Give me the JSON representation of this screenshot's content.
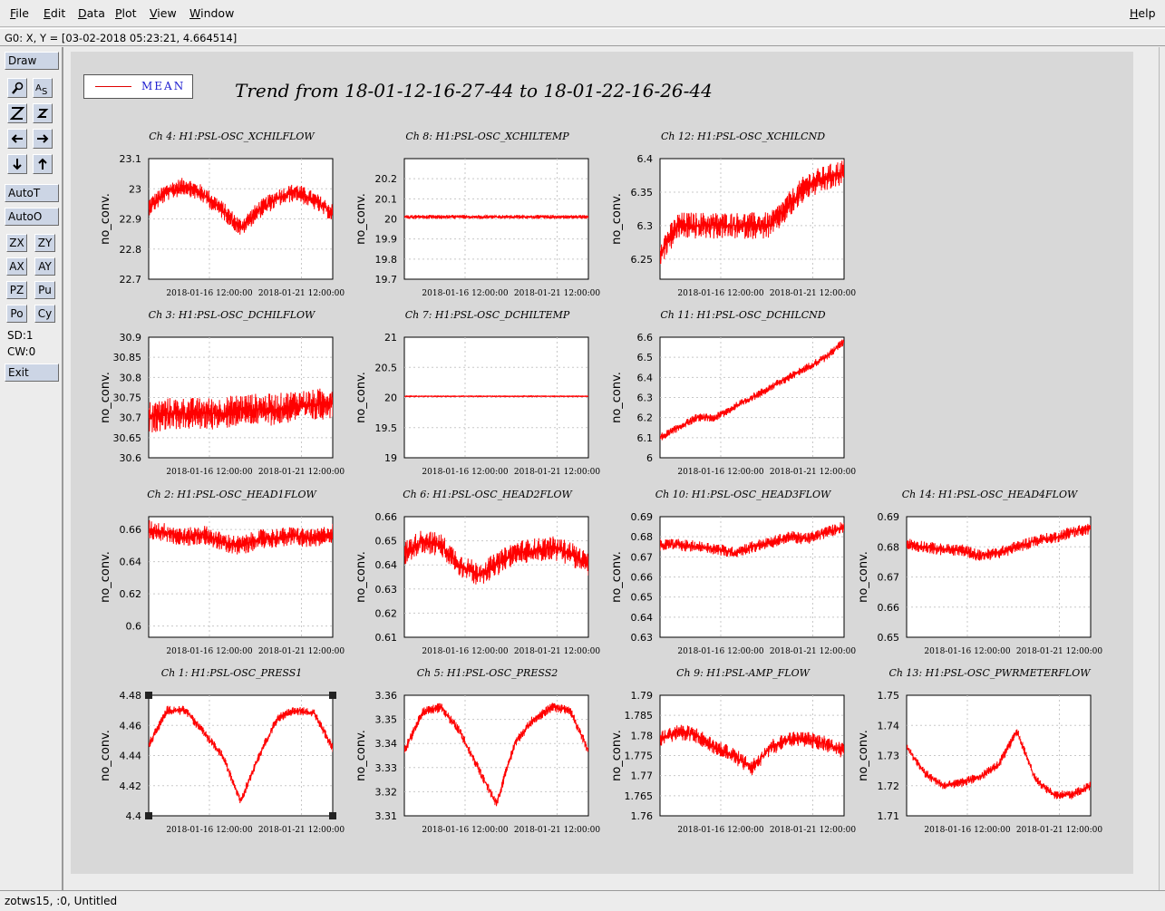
{
  "menubar": {
    "items": [
      {
        "label": "File",
        "u": "F",
        "rest": "ile"
      },
      {
        "label": "Edit",
        "u": "E",
        "rest": "dit"
      },
      {
        "label": "Data",
        "u": "D",
        "rest": "ata"
      },
      {
        "label": "Plot",
        "u": "P",
        "rest": "lot"
      },
      {
        "label": "View",
        "u": "V",
        "rest": "iew"
      },
      {
        "label": "Window",
        "u": "W",
        "rest": "indow"
      }
    ],
    "help": {
      "u": "H",
      "rest": "elp"
    }
  },
  "status": {
    "cursor": "G0: X, Y = [03-02-2018 05:23:21, 4.664514]"
  },
  "toolbar": {
    "draw": "Draw",
    "autot": "AutoT",
    "autoo": "AutoO",
    "zx": "ZX",
    "zy": "ZY",
    "ax": "AX",
    "ay": "AY",
    "pz": "PZ",
    "pu": "Pu",
    "po": "Po",
    "cy": "Cy",
    "sd": "SD:1",
    "cw": "CW:0",
    "exit": "Exit"
  },
  "bottom_status": "zotws15, :0, Untitled",
  "legend": {
    "label": "MEAN",
    "color": "#e00000"
  },
  "title": "Trend from 18-01-12-16-27-44 to 18-01-22-16-26-44",
  "colors": {
    "trace": "#ff0000",
    "plot_bg": "#ffffff",
    "canvas_bg": "#d8d8d8"
  },
  "chart_data": [
    {
      "type": "line",
      "title": "Ch 4: H1:PSL-OSC_XCHILFLOW",
      "ylabel": "no_conv.",
      "yticks": [
        "23.1",
        "23",
        "22.9",
        "22.8",
        "22.7"
      ],
      "ylim": [
        22.7,
        23.1
      ],
      "xticks": [
        "2018-01-16 12:00:00",
        "2018-01-21 12:00:00"
      ],
      "x_dates": [
        "2018-01-12",
        "2018-01-13",
        "2018-01-14",
        "2018-01-15",
        "2018-01-16",
        "2018-01-17",
        "2018-01-18",
        "2018-01-19",
        "2018-01-20",
        "2018-01-21",
        "2018-01-22"
      ],
      "series": [
        {
          "values": [
            22.94,
            22.99,
            23.01,
            22.98,
            22.93,
            22.87,
            22.93,
            22.97,
            22.99,
            22.96,
            22.92
          ]
        }
      ],
      "spread": 0.03
    },
    {
      "type": "line",
      "title": "Ch 8: H1:PSL-OSC_XCHILTEMP",
      "ylabel": "no_conv.",
      "yticks": [
        "20.2",
        "20.1",
        "20",
        "19.9",
        "19.8",
        "19.7"
      ],
      "ylim": [
        19.7,
        20.3
      ],
      "xticks": [
        "2018-01-16 12:00:00",
        "2018-01-21 12:00:00"
      ],
      "x_dates": [
        "2018-01-12",
        "2018-01-13",
        "2018-01-14",
        "2018-01-15",
        "2018-01-16",
        "2018-01-17",
        "2018-01-18",
        "2018-01-19",
        "2018-01-20",
        "2018-01-21",
        "2018-01-22"
      ],
      "series": [
        {
          "values": [
            20.01,
            20.01,
            20.01,
            20.01,
            20.01,
            20.01,
            20.01,
            20.01,
            20.01,
            20.01,
            20.01
          ]
        }
      ],
      "spread": 0.01
    },
    {
      "type": "line",
      "title": "Ch 12: H1:PSL-OSC_XCHILCND",
      "ylabel": "no_conv.",
      "yticks": [
        "6.4",
        "6.35",
        "6.3",
        "6.25"
      ],
      "ylim": [
        6.22,
        6.4
      ],
      "xticks": [
        "2018-01-16 12:00:00",
        "2018-01-21 12:00:00"
      ],
      "x_dates": [
        "2018-01-12",
        "2018-01-13",
        "2018-01-14",
        "2018-01-15",
        "2018-01-16",
        "2018-01-17",
        "2018-01-18",
        "2018-01-19",
        "2018-01-20",
        "2018-01-21",
        "2018-01-22"
      ],
      "series": [
        {
          "values": [
            6.26,
            6.3,
            6.3,
            6.3,
            6.3,
            6.3,
            6.3,
            6.33,
            6.36,
            6.37,
            6.38
          ]
        }
      ],
      "spread": 0.02
    },
    {
      "type": "line",
      "title": "Ch 3: H1:PSL-OSC_DCHILFLOW",
      "ylabel": "no_conv.",
      "yticks": [
        "30.9",
        "30.85",
        "30.8",
        "30.75",
        "30.7",
        "30.65",
        "30.6"
      ],
      "ylim": [
        30.6,
        30.9
      ],
      "xticks": [
        "2018-01-16 12:00:00",
        "2018-01-21 12:00:00"
      ],
      "x_dates": [
        "2018-01-12",
        "2018-01-13",
        "2018-01-14",
        "2018-01-15",
        "2018-01-16",
        "2018-01-17",
        "2018-01-18",
        "2018-01-19",
        "2018-01-20",
        "2018-01-21",
        "2018-01-22"
      ],
      "series": [
        {
          "values": [
            30.7,
            30.71,
            30.71,
            30.71,
            30.71,
            30.72,
            30.72,
            30.72,
            30.73,
            30.73,
            30.74
          ]
        }
      ],
      "spread": 0.04
    },
    {
      "type": "line",
      "title": "Ch 7: H1:PSL-OSC_DCHILTEMP",
      "ylabel": "no_conv.",
      "yticks": [
        "21",
        "20.5",
        "20",
        "19.5",
        "19"
      ],
      "ylim": [
        19,
        21
      ],
      "xticks": [
        "2018-01-16 12:00:00",
        "2018-01-21 12:00:00"
      ],
      "x_dates": [
        "2018-01-12",
        "2018-01-13",
        "2018-01-14",
        "2018-01-15",
        "2018-01-16",
        "2018-01-17",
        "2018-01-18",
        "2018-01-19",
        "2018-01-20",
        "2018-01-21",
        "2018-01-22"
      ],
      "series": [
        {
          "values": [
            20.02,
            20.02,
            20.02,
            20.02,
            20.02,
            20.02,
            20.02,
            20.02,
            20.02,
            20.02,
            20.02
          ]
        }
      ],
      "spread": 0.005
    },
    {
      "type": "line",
      "title": "Ch 11: H1:PSL-OSC_DCHILCND",
      "ylabel": "no_conv.",
      "yticks": [
        "6.6",
        "6.5",
        "6.4",
        "6.3",
        "6.2",
        "6.1",
        "6"
      ],
      "ylim": [
        6,
        6.6
      ],
      "xticks": [
        "2018-01-16 12:00:00",
        "2018-01-21 12:00:00"
      ],
      "x_dates": [
        "2018-01-12",
        "2018-01-13",
        "2018-01-14",
        "2018-01-15",
        "2018-01-16",
        "2018-01-17",
        "2018-01-18",
        "2018-01-19",
        "2018-01-20",
        "2018-01-21",
        "2018-01-22"
      ],
      "series": [
        {
          "values": [
            6.1,
            6.15,
            6.2,
            6.2,
            6.25,
            6.3,
            6.35,
            6.4,
            6.45,
            6.5,
            6.58
          ]
        }
      ],
      "spread": 0.02
    },
    {
      "type": "line",
      "title": "Ch 2: H1:PSL-OSC_HEAD1FLOW",
      "ylabel": "no_conv.",
      "yticks": [
        "0.66",
        "0.64",
        "0.62",
        "0.6"
      ],
      "ylim": [
        0.593,
        0.668
      ],
      "xticks": [
        "2018-01-16 12:00:00",
        "2018-01-21 12:00:00"
      ],
      "x_dates": [
        "2018-01-12",
        "2018-01-13",
        "2018-01-14",
        "2018-01-15",
        "2018-01-16",
        "2018-01-17",
        "2018-01-18",
        "2018-01-19",
        "2018-01-20",
        "2018-01-21",
        "2018-01-22"
      ],
      "series": [
        {
          "values": [
            0.66,
            0.658,
            0.655,
            0.657,
            0.652,
            0.65,
            0.654,
            0.655,
            0.656,
            0.654,
            0.658
          ]
        }
      ],
      "spread": 0.006
    },
    {
      "type": "line",
      "title": "Ch 6: H1:PSL-OSC_HEAD2FLOW",
      "ylabel": "no_conv.",
      "yticks": [
        "0.66",
        "0.65",
        "0.64",
        "0.63",
        "0.62",
        "0.61"
      ],
      "ylim": [
        0.61,
        0.66
      ],
      "xticks": [
        "2018-01-16 12:00:00",
        "2018-01-21 12:00:00"
      ],
      "x_dates": [
        "2018-01-12",
        "2018-01-13",
        "2018-01-14",
        "2018-01-15",
        "2018-01-16",
        "2018-01-17",
        "2018-01-18",
        "2018-01-19",
        "2018-01-20",
        "2018-01-21",
        "2018-01-22"
      ],
      "series": [
        {
          "values": [
            0.645,
            0.65,
            0.648,
            0.64,
            0.636,
            0.64,
            0.645,
            0.646,
            0.647,
            0.645,
            0.64
          ]
        }
      ],
      "spread": 0.005
    },
    {
      "type": "line",
      "title": "Ch 10: H1:PSL-OSC_HEAD3FLOW",
      "ylabel": "no_conv.",
      "yticks": [
        "0.69",
        "0.68",
        "0.67",
        "0.66",
        "0.65",
        "0.64",
        "0.63"
      ],
      "ylim": [
        0.63,
        0.69
      ],
      "xticks": [
        "2018-01-16 12:00:00",
        "2018-01-21 12:00:00"
      ],
      "x_dates": [
        "2018-01-12",
        "2018-01-13",
        "2018-01-14",
        "2018-01-15",
        "2018-01-16",
        "2018-01-17",
        "2018-01-18",
        "2018-01-19",
        "2018-01-20",
        "2018-01-21",
        "2018-01-22"
      ],
      "series": [
        {
          "values": [
            0.676,
            0.676,
            0.675,
            0.674,
            0.672,
            0.675,
            0.677,
            0.68,
            0.679,
            0.682,
            0.685
          ]
        }
      ],
      "spread": 0.003
    },
    {
      "type": "line",
      "title": "Ch 14: H1:PSL-OSC_HEAD4FLOW",
      "ylabel": "no_conv.",
      "yticks": [
        "0.69",
        "0.68",
        "0.67",
        "0.66",
        "0.65"
      ],
      "ylim": [
        0.65,
        0.69
      ],
      "xticks": [
        "2018-01-16 12:00:00",
        "2018-01-21 12:00:00"
      ],
      "x_dates": [
        "2018-01-12",
        "2018-01-13",
        "2018-01-14",
        "2018-01-15",
        "2018-01-16",
        "2018-01-17",
        "2018-01-18",
        "2018-01-19",
        "2018-01-20",
        "2018-01-21",
        "2018-01-22"
      ],
      "series": [
        {
          "values": [
            0.681,
            0.68,
            0.679,
            0.679,
            0.677,
            0.678,
            0.68,
            0.682,
            0.683,
            0.685,
            0.686
          ]
        }
      ],
      "spread": 0.002
    },
    {
      "type": "line",
      "title": "Ch 1: H1:PSL-OSC_PRESS1",
      "ylabel": "no_conv.",
      "yticks": [
        "4.48",
        "4.46",
        "4.44",
        "4.42",
        "4.4"
      ],
      "ylim": [
        4.4,
        4.48
      ],
      "xticks": [
        "2018-01-16 12:00:00",
        "2018-01-21 12:00:00"
      ],
      "x_dates": [
        "2018-01-12",
        "2018-01-13",
        "2018-01-14",
        "2018-01-15",
        "2018-01-16",
        "2018-01-17",
        "2018-01-18",
        "2018-01-19",
        "2018-01-20",
        "2018-01-21",
        "2018-01-22"
      ],
      "series": [
        {
          "values": [
            4.447,
            4.47,
            4.47,
            4.455,
            4.44,
            4.41,
            4.44,
            4.465,
            4.47,
            4.468,
            4.445
          ]
        }
      ],
      "spread": 0.003
    },
    {
      "type": "line",
      "title": "Ch 5: H1:PSL-OSC_PRESS2",
      "ylabel": "no_conv.",
      "yticks": [
        "3.36",
        "3.35",
        "3.34",
        "3.33",
        "3.32",
        "3.31"
      ],
      "ylim": [
        3.31,
        3.36
      ],
      "xticks": [
        "2018-01-16 12:00:00",
        "2018-01-21 12:00:00"
      ],
      "x_dates": [
        "2018-01-12",
        "2018-01-13",
        "2018-01-14",
        "2018-01-15",
        "2018-01-16",
        "2018-01-17",
        "2018-01-18",
        "2018-01-19",
        "2018-01-20",
        "2018-01-21",
        "2018-01-22"
      ],
      "series": [
        {
          "values": [
            3.337,
            3.353,
            3.355,
            3.345,
            3.33,
            3.315,
            3.34,
            3.35,
            3.355,
            3.354,
            3.337
          ]
        }
      ],
      "spread": 0.002
    },
    {
      "type": "line",
      "title": "Ch 9: H1:PSL-AMP_FLOW",
      "ylabel": "no_conv.",
      "yticks": [
        "1.79",
        "1.785",
        "1.78",
        "1.775",
        "1.77",
        "1.765",
        "1.76"
      ],
      "ylim": [
        1.76,
        1.79
      ],
      "xticks": [
        "2018-01-16 12:00:00",
        "2018-01-21 12:00:00"
      ],
      "x_dates": [
        "2018-01-12",
        "2018-01-13",
        "2018-01-14",
        "2018-01-15",
        "2018-01-16",
        "2018-01-17",
        "2018-01-18",
        "2018-01-19",
        "2018-01-20",
        "2018-01-21",
        "2018-01-22"
      ],
      "series": [
        {
          "values": [
            1.779,
            1.781,
            1.78,
            1.777,
            1.775,
            1.772,
            1.777,
            1.779,
            1.779,
            1.778,
            1.776
          ]
        }
      ],
      "spread": 0.002
    },
    {
      "type": "line",
      "title": "Ch 13: H1:PSL-OSC_PWRMETERFLOW",
      "ylabel": "no_conv.",
      "yticks": [
        "1.75",
        "1.74",
        "1.73",
        "1.72",
        "1.71"
      ],
      "ylim": [
        1.71,
        1.75
      ],
      "xticks": [
        "2018-01-16 12:00:00",
        "2018-01-21 12:00:00"
      ],
      "x_dates": [
        "2018-01-12",
        "2018-01-13",
        "2018-01-14",
        "2018-01-15",
        "2018-01-16",
        "2018-01-17",
        "2018-01-18",
        "2018-01-19",
        "2018-01-20",
        "2018-01-21",
        "2018-01-22"
      ],
      "series": [
        {
          "values": [
            1.733,
            1.724,
            1.72,
            1.721,
            1.723,
            1.727,
            1.738,
            1.722,
            1.717,
            1.717,
            1.72
          ]
        }
      ],
      "spread": 0.0015
    }
  ]
}
